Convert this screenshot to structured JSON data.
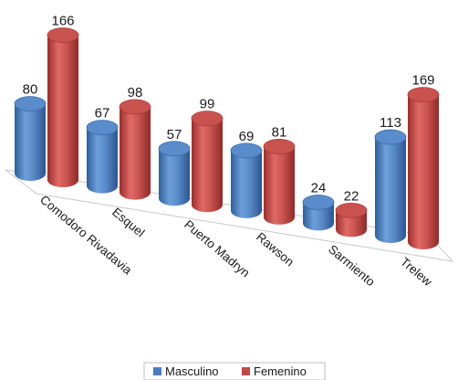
{
  "chart_data": {
    "type": "bar",
    "style": "3d-cylinder",
    "categories": [
      "Comodoro Rivadavia",
      "Esquel",
      "Puerto Madryn",
      "Rawson",
      "Sarmiento",
      "Trelew"
    ],
    "series": [
      {
        "name": "Masculino",
        "color": "#4a7ebb",
        "values": [
          80,
          67,
          57,
          69,
          24,
          113
        ]
      },
      {
        "name": "Femenino",
        "color": "#be4b48",
        "values": [
          166,
          98,
          99,
          81,
          22,
          169
        ]
      }
    ],
    "title": "",
    "xlabel": "",
    "ylabel": "",
    "ylim": [
      0,
      180
    ],
    "grid": false,
    "legend_position": "bottom"
  }
}
